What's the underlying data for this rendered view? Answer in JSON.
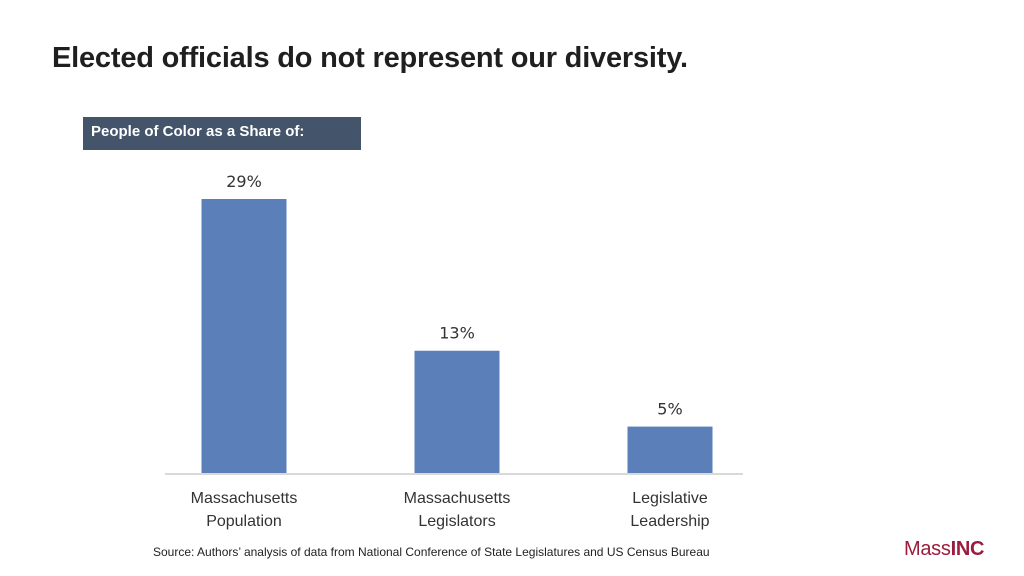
{
  "slide": {
    "title": "Elected officials do not represent our diversity.",
    "source": "Source: Authors’ analysis of data from National Conference of State Legislatures and US Census Bureau",
    "logo": {
      "part1": "Mass",
      "part2": "INC",
      "color": "#9b1c3d"
    }
  },
  "chart_data": {
    "type": "bar",
    "title": "People of Color as a Share of:",
    "categories": [
      [
        "Massachusetts",
        "Population"
      ],
      [
        "Massachusetts",
        "Legislators"
      ],
      [
        "Legislative",
        "Leadership"
      ]
    ],
    "values": [
      29,
      13,
      5
    ],
    "data_labels": [
      "29%",
      "13%",
      "5%"
    ],
    "ylim": [
      0,
      29
    ],
    "grid": false,
    "legend": "none",
    "bar_color": "#5b7fb9",
    "axis_color": "#d9d9d9"
  }
}
